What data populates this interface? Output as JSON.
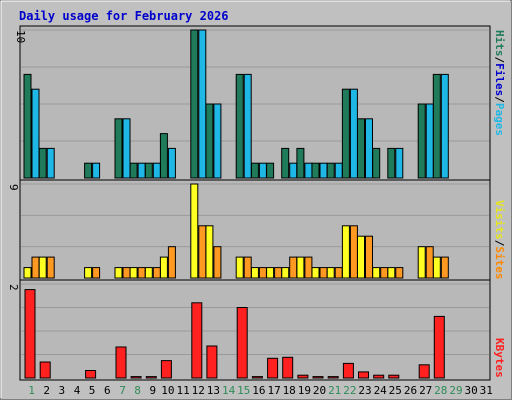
{
  "title": "Daily usage for February 2026",
  "colors": {
    "hits": "#1f7b5a",
    "files": "#1fb8e6",
    "pages": "#1fb8e6",
    "visits": "#ffff22",
    "sites": "#ff9922",
    "kbytes": "#ff2020",
    "weekend_label": "#2e8b57",
    "title": "#0000cc"
  },
  "y_labels": {
    "top": "10",
    "middle": "9",
    "bottom": "2"
  },
  "legend": {
    "pages": "Pages",
    "files": "Files",
    "hits": "Hits",
    "sites": "Sites",
    "visits": "Visits",
    "kbytes": "KBytes",
    "sep": "/"
  },
  "chart_data": {
    "type": "bar",
    "title": "Daily usage for February 2026",
    "categories": [
      "1",
      "2",
      "3",
      "4",
      "5",
      "6",
      "7",
      "8",
      "9",
      "10",
      "11",
      "12",
      "13",
      "14",
      "15",
      "16",
      "17",
      "18",
      "19",
      "20",
      "21",
      "22",
      "23",
      "24",
      "25",
      "26",
      "27",
      "28",
      "29",
      "30",
      "31"
    ],
    "weekend_days": [
      "1",
      "7",
      "8",
      "14",
      "15",
      "21",
      "22",
      "28",
      "29"
    ],
    "panels": [
      {
        "name": "hits-files",
        "ymax": 10,
        "series": [
          {
            "name": "Hits",
            "values": [
              7,
              2,
              0,
              0,
              1,
              0,
              4,
              1,
              1,
              3,
              0,
              10,
              5,
              0,
              7,
              1,
              1,
              2,
              2,
              1,
              1,
              6,
              4,
              2,
              2,
              0,
              5,
              7,
              0,
              0,
              0
            ]
          },
          {
            "name": "Files",
            "values": [
              6,
              2,
              0,
              0,
              1,
              0,
              4,
              1,
              1,
              2,
              0,
              10,
              5,
              0,
              7,
              1,
              0,
              1,
              1,
              1,
              1,
              6,
              4,
              0,
              2,
              0,
              5,
              7,
              0,
              0,
              0
            ]
          }
        ]
      },
      {
        "name": "visits-sites",
        "ymax": 9,
        "series": [
          {
            "name": "Visits",
            "values": [
              1,
              2,
              0,
              0,
              1,
              0,
              1,
              1,
              1,
              2,
              0,
              9,
              5,
              0,
              2,
              1,
              1,
              1,
              2,
              1,
              1,
              5,
              4,
              1,
              1,
              0,
              3,
              2,
              0,
              0,
              0
            ]
          },
          {
            "name": "Sites",
            "values": [
              2,
              2,
              0,
              0,
              1,
              0,
              1,
              1,
              1,
              3,
              0,
              5,
              3,
              0,
              2,
              1,
              1,
              2,
              2,
              1,
              1,
              5,
              4,
              1,
              1,
              0,
              3,
              2,
              0,
              0,
              0
            ]
          }
        ]
      },
      {
        "name": "kbytes",
        "ymax": 2,
        "series": [
          {
            "name": "KBytes",
            "values": [
              1.88,
              0.34,
              0,
              0,
              0.16,
              0,
              0.66,
              0.03,
              0.03,
              0.37,
              0,
              1.6,
              0.68,
              0,
              1.5,
              0.03,
              0.42,
              0.44,
              0.06,
              0.03,
              0.03,
              0.31,
              0.13,
              0.06,
              0.06,
              0,
              0.28,
              1.31,
              0,
              0,
              0
            ]
          }
        ]
      }
    ]
  }
}
